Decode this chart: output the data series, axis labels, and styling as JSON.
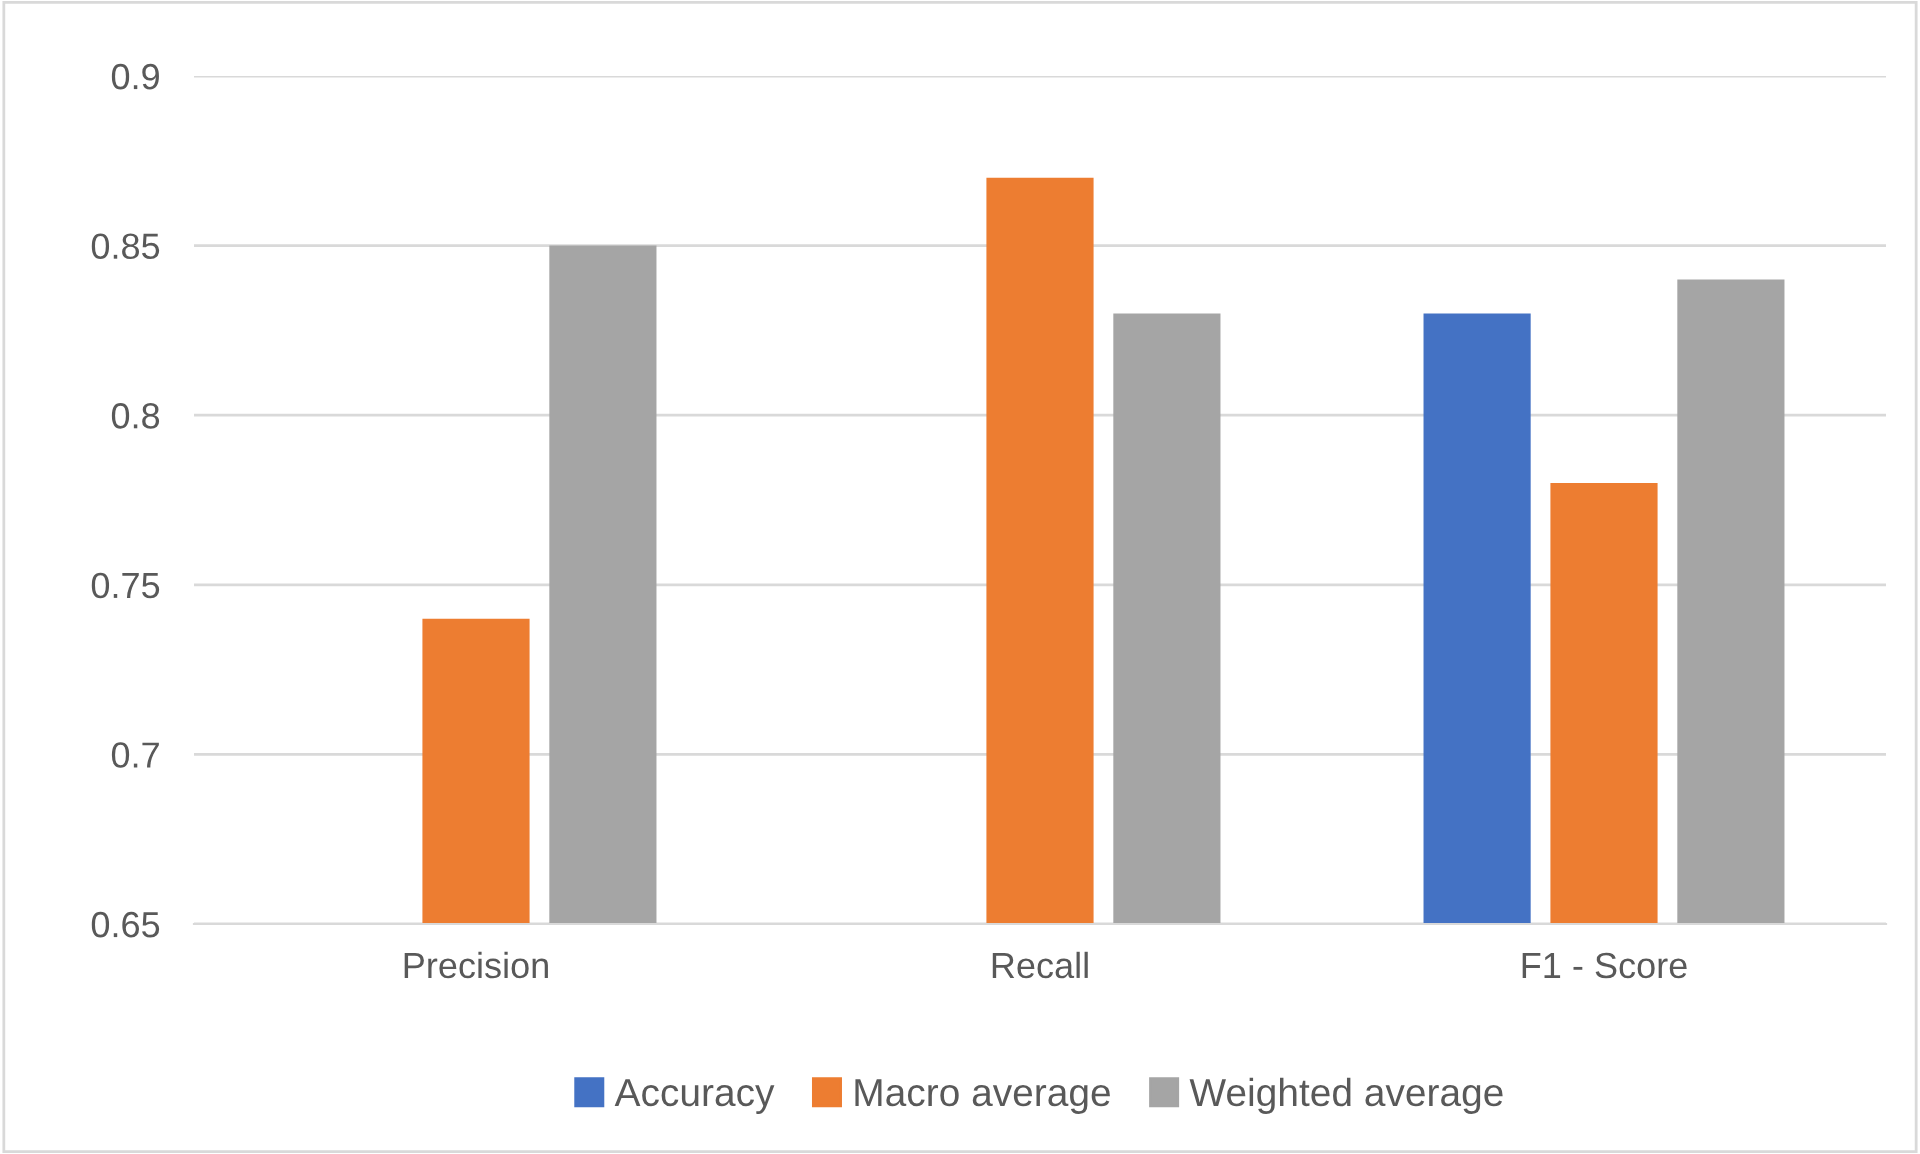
{
  "chart_data": {
    "type": "bar",
    "categories": [
      "Precision",
      "Recall",
      "F1 - Score"
    ],
    "series": [
      {
        "name": "Accuracy",
        "color": "#4472c4",
        "values": [
          null,
          null,
          0.83
        ]
      },
      {
        "name": "Macro average",
        "color": "#ed7d31",
        "values": [
          0.74,
          0.87,
          0.78
        ]
      },
      {
        "name": "Weighted average",
        "color": "#a5a5a5",
        "values": [
          0.85,
          0.83,
          0.84
        ]
      }
    ],
    "ylim": [
      0.65,
      0.9
    ],
    "yticks": [
      0.65,
      0.7,
      0.75,
      0.8,
      0.85,
      0.9
    ],
    "grid": "y",
    "legend": "bottom"
  }
}
